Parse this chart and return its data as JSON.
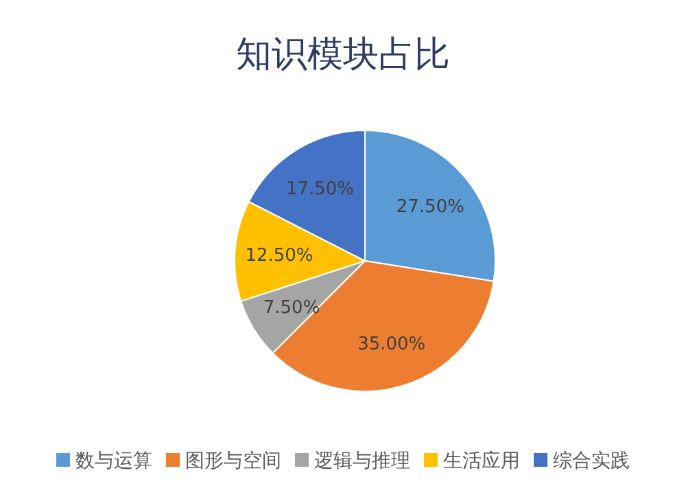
{
  "chart_data": {
    "type": "pie",
    "title": "知识模块占比",
    "categories": [
      "数与运算",
      "图形与空间",
      "逻辑与推理",
      "生活应用",
      "综合实践"
    ],
    "values": [
      27.5,
      35,
      7.5,
      12.5,
      17.5
    ],
    "colors": [
      "#5b9bd5",
      "#ed7d31",
      "#a5a5a5",
      "#ffc000",
      "#4472c4"
    ],
    "value_labels": [
      "27.50%",
      "35.00%",
      "7.50%",
      "12.50%",
      "17.50%"
    ],
    "legend": "bottom"
  }
}
